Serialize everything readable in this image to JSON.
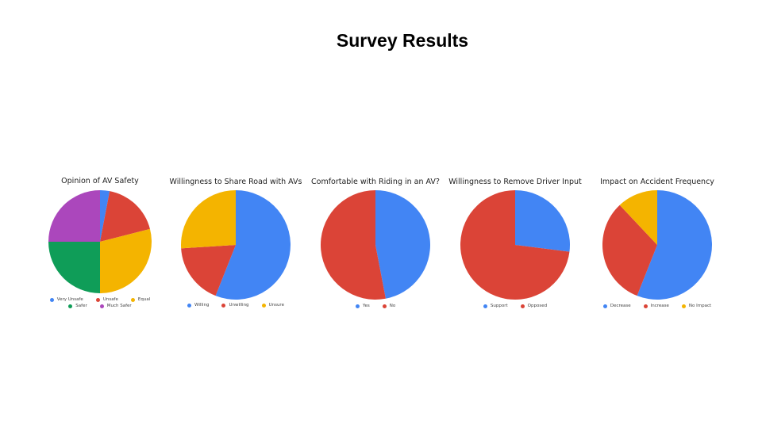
{
  "page": {
    "title": "Survey Results"
  },
  "chart_data": [
    {
      "type": "pie",
      "title": "Opinion of AV Safety",
      "slices": [
        {
          "label": "Very Unsafe",
          "value": 3,
          "color": "#4285F4"
        },
        {
          "label": "Unsafe",
          "value": 18,
          "color": "#DB4437"
        },
        {
          "label": "Equal",
          "value": 29,
          "color": "#F4B400"
        },
        {
          "label": "Safer",
          "value": 25,
          "color": "#0F9D58"
        },
        {
          "label": "Much Safer",
          "value": 25,
          "color": "#AB47BC"
        }
      ],
      "legend_rows": [
        [
          0,
          1,
          2
        ],
        [
          3,
          4
        ]
      ]
    },
    {
      "type": "pie",
      "title": "Willingness to Share Road with AVs",
      "slices": [
        {
          "label": "Willing",
          "value": 56,
          "color": "#4285F4"
        },
        {
          "label": "Unwilling",
          "value": 18,
          "color": "#DB4437"
        },
        {
          "label": "Unsure",
          "value": 26,
          "color": "#F4B400"
        }
      ],
      "legend_rows": [
        [
          0,
          1,
          2
        ]
      ]
    },
    {
      "type": "pie",
      "title": "Comfortable with Riding in an AV?",
      "slices": [
        {
          "label": "Yes",
          "value": 47,
          "color": "#4285F4"
        },
        {
          "label": "No",
          "value": 53,
          "color": "#DB4437"
        }
      ],
      "legend_rows": [
        [
          0,
          1
        ]
      ]
    },
    {
      "type": "pie",
      "title": "Willingness to Remove Driver Input",
      "slices": [
        {
          "label": "Support",
          "value": 27,
          "color": "#4285F4"
        },
        {
          "label": "Opposed",
          "value": 73,
          "color": "#DB4437"
        }
      ],
      "legend_rows": [
        [
          0,
          1
        ]
      ]
    },
    {
      "type": "pie",
      "title": "Impact on Accident Frequency",
      "slices": [
        {
          "label": "Decrease",
          "value": 56,
          "color": "#4285F4"
        },
        {
          "label": "Increase",
          "value": 32,
          "color": "#DB4437"
        },
        {
          "label": "No Impact",
          "value": 12,
          "color": "#F4B400"
        }
      ],
      "legend_rows": [
        [
          0,
          1,
          2
        ]
      ]
    }
  ]
}
